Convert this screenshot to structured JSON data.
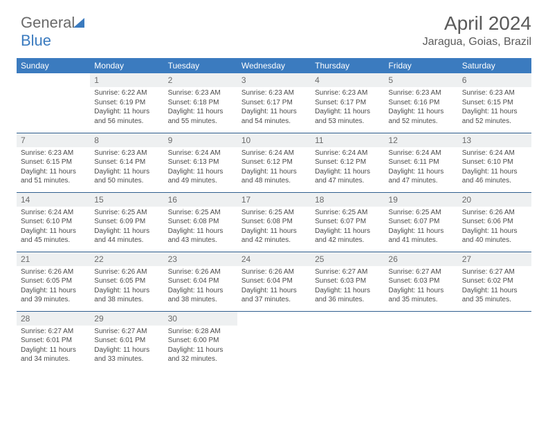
{
  "logo": {
    "text1": "General",
    "text2": "Blue"
  },
  "header": {
    "month": "April 2024",
    "location": "Jaragua, Goias, Brazil"
  },
  "calendar": {
    "day_header_bg": "#3b7bbf",
    "day_header_color": "#ffffff",
    "cell_border_color": "#2f5e8e",
    "daynum_bg": "#eef0f1",
    "text_color": "#4a4a4a",
    "font_size_header": 12,
    "font_size_cell": 10,
    "days": [
      "Sunday",
      "Monday",
      "Tuesday",
      "Wednesday",
      "Thursday",
      "Friday",
      "Saturday"
    ],
    "weeks": [
      [
        null,
        {
          "n": "1",
          "rise": "6:22 AM",
          "set": "6:19 PM",
          "dl": "11 hours and 56 minutes."
        },
        {
          "n": "2",
          "rise": "6:23 AM",
          "set": "6:18 PM",
          "dl": "11 hours and 55 minutes."
        },
        {
          "n": "3",
          "rise": "6:23 AM",
          "set": "6:17 PM",
          "dl": "11 hours and 54 minutes."
        },
        {
          "n": "4",
          "rise": "6:23 AM",
          "set": "6:17 PM",
          "dl": "11 hours and 53 minutes."
        },
        {
          "n": "5",
          "rise": "6:23 AM",
          "set": "6:16 PM",
          "dl": "11 hours and 52 minutes."
        },
        {
          "n": "6",
          "rise": "6:23 AM",
          "set": "6:15 PM",
          "dl": "11 hours and 52 minutes."
        }
      ],
      [
        {
          "n": "7",
          "rise": "6:23 AM",
          "set": "6:15 PM",
          "dl": "11 hours and 51 minutes."
        },
        {
          "n": "8",
          "rise": "6:23 AM",
          "set": "6:14 PM",
          "dl": "11 hours and 50 minutes."
        },
        {
          "n": "9",
          "rise": "6:24 AM",
          "set": "6:13 PM",
          "dl": "11 hours and 49 minutes."
        },
        {
          "n": "10",
          "rise": "6:24 AM",
          "set": "6:12 PM",
          "dl": "11 hours and 48 minutes."
        },
        {
          "n": "11",
          "rise": "6:24 AM",
          "set": "6:12 PM",
          "dl": "11 hours and 47 minutes."
        },
        {
          "n": "12",
          "rise": "6:24 AM",
          "set": "6:11 PM",
          "dl": "11 hours and 47 minutes."
        },
        {
          "n": "13",
          "rise": "6:24 AM",
          "set": "6:10 PM",
          "dl": "11 hours and 46 minutes."
        }
      ],
      [
        {
          "n": "14",
          "rise": "6:24 AM",
          "set": "6:10 PM",
          "dl": "11 hours and 45 minutes."
        },
        {
          "n": "15",
          "rise": "6:25 AM",
          "set": "6:09 PM",
          "dl": "11 hours and 44 minutes."
        },
        {
          "n": "16",
          "rise": "6:25 AM",
          "set": "6:08 PM",
          "dl": "11 hours and 43 minutes."
        },
        {
          "n": "17",
          "rise": "6:25 AM",
          "set": "6:08 PM",
          "dl": "11 hours and 42 minutes."
        },
        {
          "n": "18",
          "rise": "6:25 AM",
          "set": "6:07 PM",
          "dl": "11 hours and 42 minutes."
        },
        {
          "n": "19",
          "rise": "6:25 AM",
          "set": "6:07 PM",
          "dl": "11 hours and 41 minutes."
        },
        {
          "n": "20",
          "rise": "6:26 AM",
          "set": "6:06 PM",
          "dl": "11 hours and 40 minutes."
        }
      ],
      [
        {
          "n": "21",
          "rise": "6:26 AM",
          "set": "6:05 PM",
          "dl": "11 hours and 39 minutes."
        },
        {
          "n": "22",
          "rise": "6:26 AM",
          "set": "6:05 PM",
          "dl": "11 hours and 38 minutes."
        },
        {
          "n": "23",
          "rise": "6:26 AM",
          "set": "6:04 PM",
          "dl": "11 hours and 38 minutes."
        },
        {
          "n": "24",
          "rise": "6:26 AM",
          "set": "6:04 PM",
          "dl": "11 hours and 37 minutes."
        },
        {
          "n": "25",
          "rise": "6:27 AM",
          "set": "6:03 PM",
          "dl": "11 hours and 36 minutes."
        },
        {
          "n": "26",
          "rise": "6:27 AM",
          "set": "6:03 PM",
          "dl": "11 hours and 35 minutes."
        },
        {
          "n": "27",
          "rise": "6:27 AM",
          "set": "6:02 PM",
          "dl": "11 hours and 35 minutes."
        }
      ],
      [
        {
          "n": "28",
          "rise": "6:27 AM",
          "set": "6:01 PM",
          "dl": "11 hours and 34 minutes."
        },
        {
          "n": "29",
          "rise": "6:27 AM",
          "set": "6:01 PM",
          "dl": "11 hours and 33 minutes."
        },
        {
          "n": "30",
          "rise": "6:28 AM",
          "set": "6:00 PM",
          "dl": "11 hours and 32 minutes."
        },
        null,
        null,
        null,
        null
      ]
    ],
    "labels": {
      "sunrise": "Sunrise:",
      "sunset": "Sunset:",
      "daylight": "Daylight:"
    }
  }
}
